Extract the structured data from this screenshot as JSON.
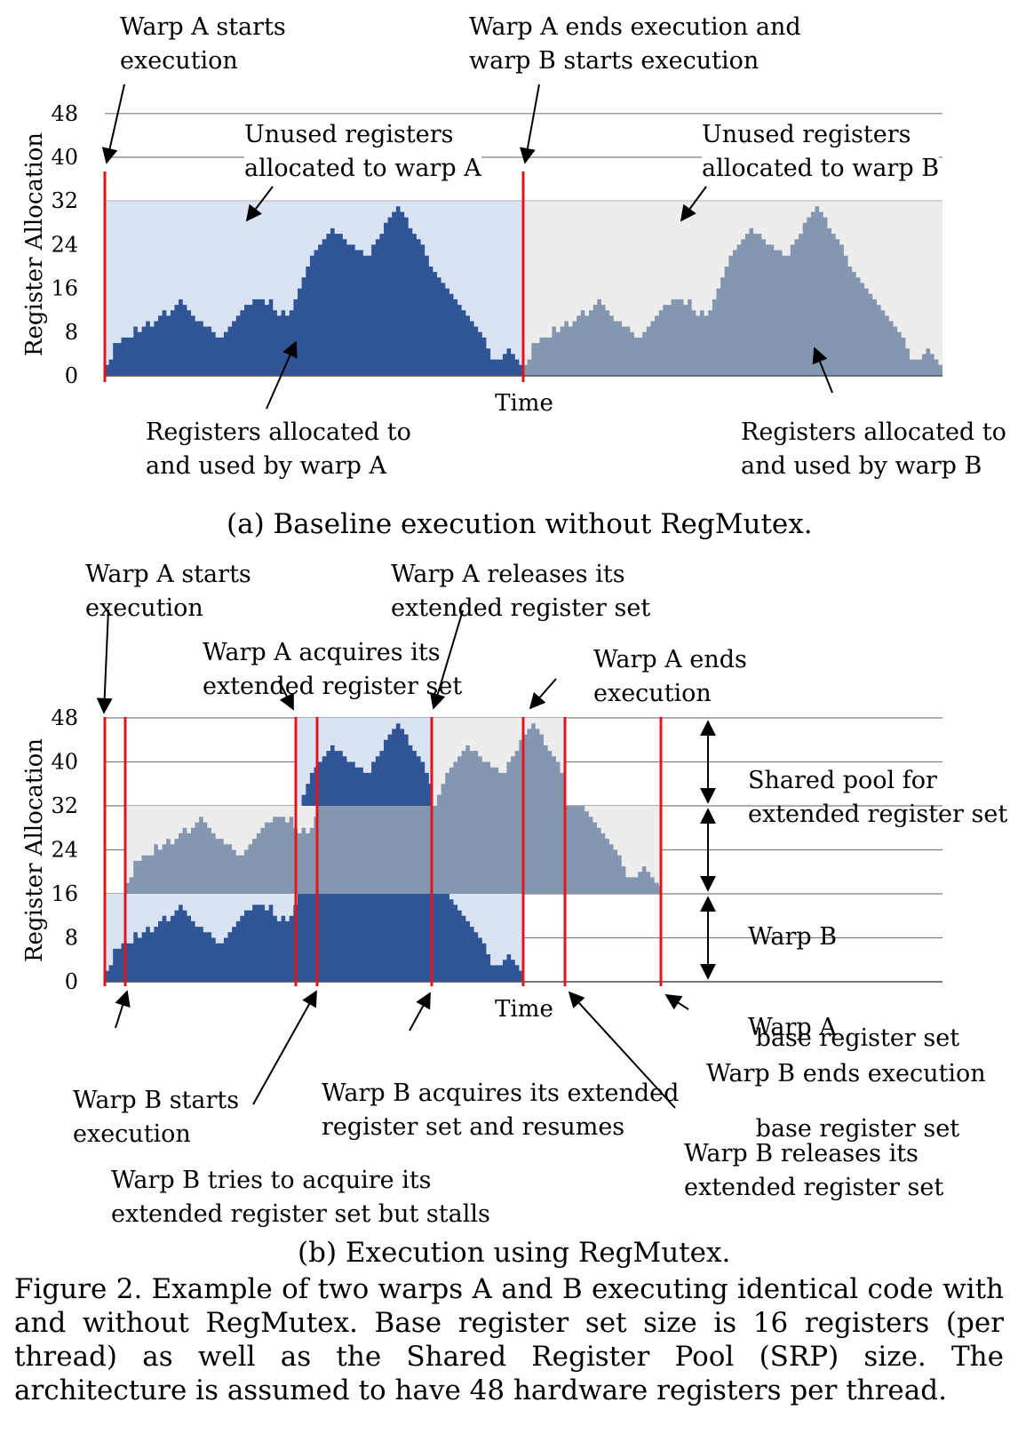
{
  "chart_data": [
    {
      "id": "a",
      "type": "area",
      "caption": "(a) Baseline execution without RegMutex.",
      "ylabel": "Register Allocation",
      "xlabel": "Time",
      "yticks": [
        0,
        8,
        16,
        24,
        32,
        40,
        48
      ],
      "ylim": [
        0,
        48
      ],
      "grid": true,
      "warp_a_profile": [
        2,
        3,
        6,
        6,
        7,
        7,
        7,
        9,
        8,
        9,
        10,
        9,
        10,
        11,
        12,
        11,
        12,
        13,
        14,
        13,
        12,
        11,
        10,
        10,
        9,
        9,
        8,
        7,
        7,
        8,
        9,
        10,
        11,
        12,
        13,
        13,
        14,
        14,
        14,
        13,
        14,
        12,
        11,
        12,
        11,
        12,
        14,
        16,
        18,
        20,
        22,
        23,
        24,
        25,
        26,
        27,
        26,
        26,
        25,
        24,
        24,
        23,
        23,
        22,
        22,
        24,
        25,
        26,
        28,
        29,
        30,
        31,
        30,
        29,
        27,
        26,
        25,
        24,
        22,
        20,
        19,
        18,
        17,
        16,
        15,
        14,
        13,
        12,
        11,
        10,
        9,
        8,
        7,
        5,
        3,
        3,
        3,
        4,
        5,
        4,
        3,
        2
      ],
      "allocation_per_warp": 32,
      "annotations": {
        "warp_a_starts": [
          "Warp A starts",
          "execution"
        ],
        "a_ends_b_starts": [
          "Warp A ends execution and",
          "warp B starts execution"
        ],
        "unused_a": [
          "Unused registers",
          "allocated to warp A"
        ],
        "unused_b": [
          "Unused registers",
          "allocated to warp B"
        ],
        "used_a": [
          "Registers allocated to",
          "and used by warp A"
        ],
        "used_b": [
          "Registers allocated to",
          "and used by warp B"
        ]
      }
    },
    {
      "id": "b",
      "type": "area",
      "caption": "(b) Execution using RegMutex.",
      "ylabel": "Register Allocation",
      "xlabel": "Time",
      "yticks": [
        0,
        8,
        16,
        24,
        32,
        40,
        48
      ],
      "ylim": [
        0,
        48
      ],
      "grid": true,
      "base_register_set": 16,
      "shared_pool_size": 16,
      "annotations": {
        "warp_a_starts": [
          "Warp A starts",
          "execution"
        ],
        "warp_a_releases": [
          "Warp A releases its",
          "extended register set"
        ],
        "warp_a_acquires": [
          "Warp A acquires its",
          "extended register set"
        ],
        "warp_a_ends": [
          "Warp A ends",
          "execution"
        ],
        "shared_pool": [
          "Shared pool for",
          "extended register set"
        ],
        "warp_b_base": [
          "Warp B",
          " base register set"
        ],
        "warp_a_base": [
          "Warp A",
          " base register set"
        ],
        "warp_b_starts": [
          "Warp B starts",
          "execution"
        ],
        "warp_b_acquires": [
          "Warp B acquires its extended",
          "register set and resumes"
        ],
        "warp_b_ends": [
          "Warp B ends execution"
        ],
        "warp_b_tries": [
          "Warp B tries to acquire its",
          "extended register set but stalls"
        ],
        "warp_b_releases": [
          "Warp B releases its",
          "extended register set"
        ]
      }
    }
  ],
  "figure_caption": "Figure 2.   Example of two warps A and B executing identical code with and without RegMutex. Base register set size is 16 registers (per thread) as well as the Shared Register Pool (SRP) size. The architecture is assumed to have 48 hardware registers per thread.",
  "colors": {
    "warp_a": "#2f5597",
    "warp_b": "#8497b0",
    "unused_a": "#dae3f3",
    "unused_b": "#ededed",
    "marker": "#e3141b",
    "grid": "#7f7f7f"
  }
}
